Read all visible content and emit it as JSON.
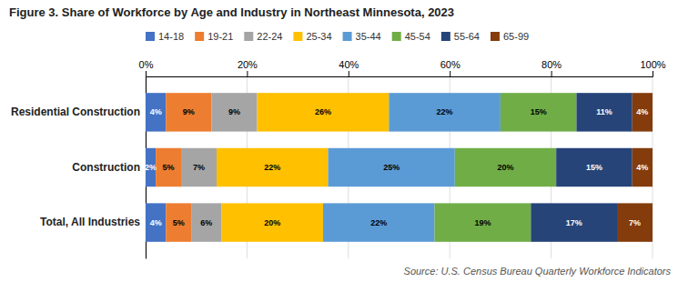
{
  "chart_data": {
    "type": "bar",
    "orientation": "horizontal",
    "stacked": true,
    "title": "Figure 3. Share of Workforce by Age and Industry in Northeast Minnesota, 2023",
    "annotations": [
      "Source: U.S. Census Bureau Quarterly Workforce Indicators"
    ],
    "categories": [
      "Residential Construction",
      "Construction",
      "Total, All Industries"
    ],
    "series": [
      {
        "name": "14-18",
        "color": "#4472c4",
        "values": [
          4,
          2,
          4
        ],
        "value_labels": [
          "4%",
          "2%",
          "4%"
        ]
      },
      {
        "name": "19-21",
        "color": "#ed7d31",
        "values": [
          9,
          5,
          5
        ],
        "value_labels": [
          "9%",
          "5%",
          "5%"
        ]
      },
      {
        "name": "22-24",
        "color": "#a5a5a5",
        "values": [
          9,
          7,
          6
        ],
        "value_labels": [
          "9%",
          "7%",
          "6%"
        ]
      },
      {
        "name": "25-34",
        "color": "#ffc000",
        "values": [
          26,
          22,
          20
        ],
        "value_labels": [
          "26%",
          "22%",
          "20%"
        ]
      },
      {
        "name": "35-44",
        "color": "#5b9bd5",
        "values": [
          22,
          25,
          22
        ],
        "value_labels": [
          "22%",
          "25%",
          "22%"
        ]
      },
      {
        "name": "45-54",
        "color": "#70ad47",
        "values": [
          15,
          20,
          19
        ],
        "value_labels": [
          "15%",
          "20%",
          "19%"
        ]
      },
      {
        "name": "55-64",
        "color": "#264478",
        "values": [
          11,
          15,
          17
        ],
        "value_labels": [
          "11%",
          "15%",
          "17%"
        ]
      },
      {
        "name": "65-99",
        "color": "#843c0c",
        "values": [
          4,
          4,
          7
        ],
        "value_labels": [
          "4%",
          "4%",
          "7%"
        ]
      }
    ],
    "xlim": [
      0,
      100
    ],
    "xticks": [
      {
        "value": 0,
        "label": "0%"
      },
      {
        "value": 20,
        "label": "20%"
      },
      {
        "value": 40,
        "label": "40%"
      },
      {
        "value": 60,
        "label": "60%"
      },
      {
        "value": 80,
        "label": "80%"
      },
      {
        "value": 100,
        "label": "100%"
      }
    ],
    "grid": true,
    "legend": "top",
    "data_labels": true
  }
}
